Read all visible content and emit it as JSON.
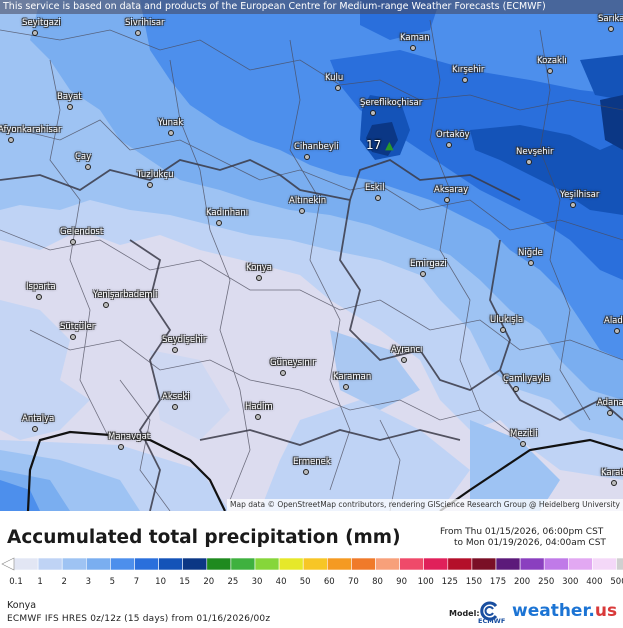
{
  "banner": "This service is based on data and products of the European Centre for Medium-range Weather Forecasts (ECMWF)",
  "attribution": "Map data © OpenStreetMap contributors, rendering GIScience Research Group @ Heidelberg University",
  "peak_value": "17",
  "cities": [
    {
      "name": "Seyitgazi"
    },
    {
      "name": "Sivrihisar"
    },
    {
      "name": "Kaman"
    },
    {
      "name": "Sarıkaya"
    },
    {
      "name": "Kozaklı"
    },
    {
      "name": "Kırşehir"
    },
    {
      "name": "Bayat"
    },
    {
      "name": "Kulu"
    },
    {
      "name": "Şereflikoçhisar"
    },
    {
      "name": "Yunak"
    },
    {
      "name": "Afyonkarahisar"
    },
    {
      "name": "Ortaköy"
    },
    {
      "name": "Cihanbeyli"
    },
    {
      "name": "Nevşehir"
    },
    {
      "name": "Çay"
    },
    {
      "name": "Tuzlukçu"
    },
    {
      "name": "Eskil"
    },
    {
      "name": "Aksaray"
    },
    {
      "name": "Yeşilhisar"
    },
    {
      "name": "Altınekin"
    },
    {
      "name": "Kadınhanı"
    },
    {
      "name": "Gelendost"
    },
    {
      "name": "Niğde"
    },
    {
      "name": "Emirgazi"
    },
    {
      "name": "Konya"
    },
    {
      "name": "Isparta"
    },
    {
      "name": "Yenişarbademli"
    },
    {
      "name": "Ulukışla"
    },
    {
      "name": "Aladağ"
    },
    {
      "name": "Sütçüler"
    },
    {
      "name": "Seydişehir"
    },
    {
      "name": "Ayrancı"
    },
    {
      "name": "Güneysınır"
    },
    {
      "name": "Karaman"
    },
    {
      "name": "Çamlıyayla"
    },
    {
      "name": "Akseki"
    },
    {
      "name": "Adana"
    },
    {
      "name": "Hadim"
    },
    {
      "name": "Antalya"
    },
    {
      "name": "Manavgat"
    },
    {
      "name": "Mezitli"
    },
    {
      "name": "Ermenek"
    },
    {
      "name": "Karataş"
    }
  ],
  "legend": {
    "title": "Accumulated total precipitation (mm)",
    "from": "From Thu 01/15/2026, 06:00pm CST",
    "to": "to Mon 01/19/2026, 04:00am CST",
    "scale": [
      {
        "label": "0.1",
        "color": "#e2e6f4"
      },
      {
        "label": "1",
        "color": "#bfd3f5"
      },
      {
        "label": "2",
        "color": "#9ec3f3"
      },
      {
        "label": "3",
        "color": "#7aaef0"
      },
      {
        "label": "5",
        "color": "#4d8fec"
      },
      {
        "label": "7",
        "color": "#2a6fdc"
      },
      {
        "label": "10",
        "color": "#1453b8"
      },
      {
        "label": "15",
        "color": "#0b3785"
      },
      {
        "label": "20",
        "color": "#1f8a1f"
      },
      {
        "label": "25",
        "color": "#3fb13f"
      },
      {
        "label": "30",
        "color": "#86d63a"
      },
      {
        "label": "40",
        "color": "#e6e82a"
      },
      {
        "label": "50",
        "color": "#f7c626"
      },
      {
        "label": "60",
        "color": "#f59a22"
      },
      {
        "label": "70",
        "color": "#f07a2a"
      },
      {
        "label": "80",
        "color": "#f7a07a"
      },
      {
        "label": "90",
        "color": "#ef4a6a"
      },
      {
        "label": "100",
        "color": "#e0205a"
      },
      {
        "label": "125",
        "color": "#b40f2a"
      },
      {
        "label": "150",
        "color": "#7a0f26"
      },
      {
        "label": "175",
        "color": "#5c1a7a"
      },
      {
        "label": "200",
        "color": "#8a3fbf"
      },
      {
        "label": "250",
        "color": "#c07ae8"
      },
      {
        "label": "300",
        "color": "#e2a8f2"
      },
      {
        "label": "400",
        "color": "#f4d8f8"
      },
      {
        "label": "500",
        "color": "#d0d0d0"
      }
    ]
  },
  "location": "Konya",
  "model_run": "ECMWF IFS HRES 0z/12z (15 days) from 01/16/2026/00z",
  "footer": {
    "model_label": "Model:",
    "ecmwf": "ECMWF",
    "brand": "weather.",
    "brand_tld": "us"
  }
}
